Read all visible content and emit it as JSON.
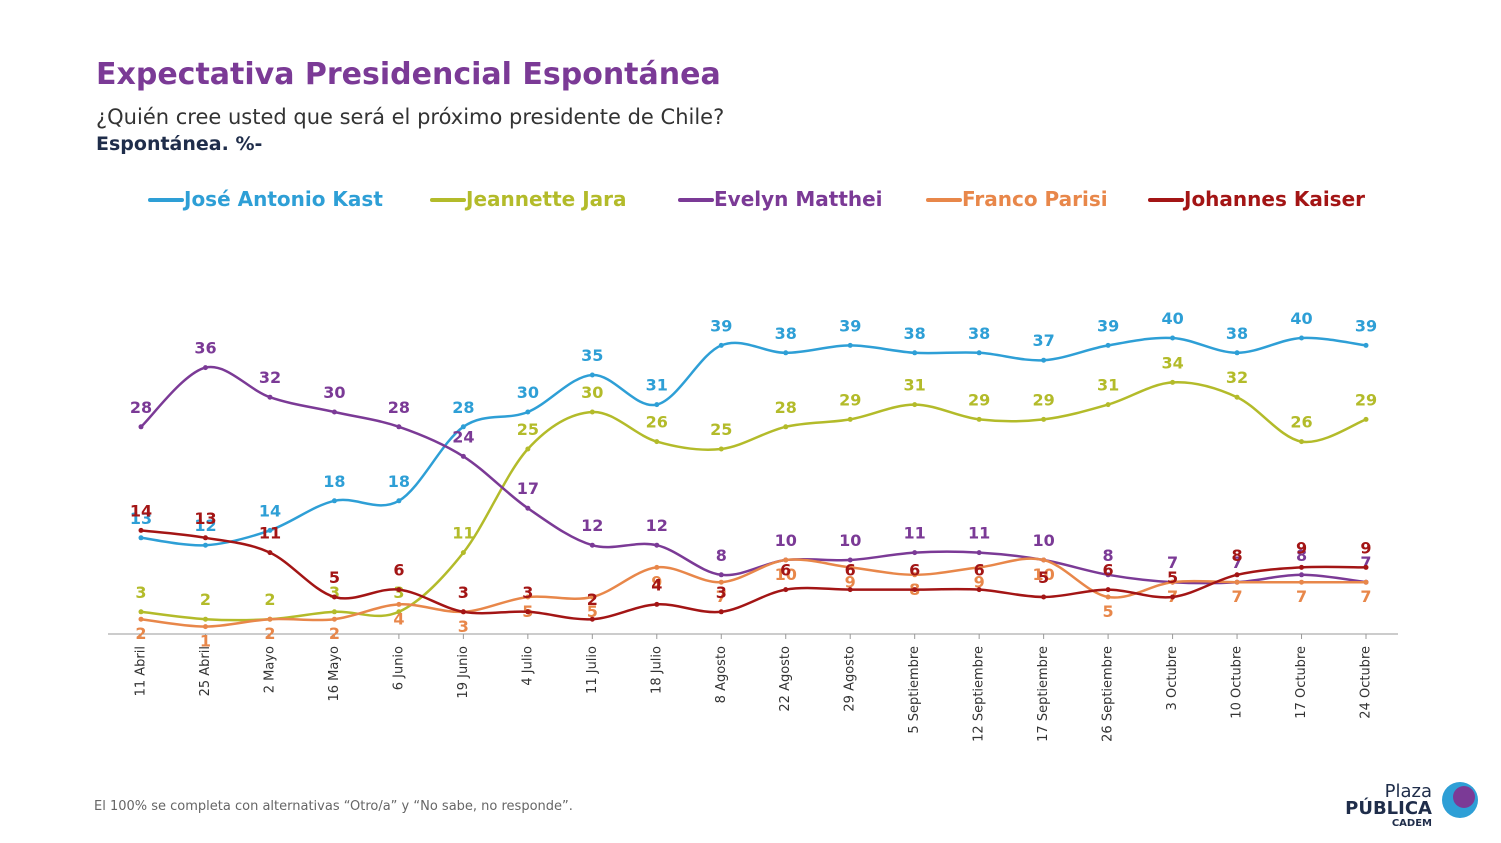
{
  "chart_data": {
    "type": "line",
    "title": "Expectativa Presidencial Espontánea",
    "subtitle": "¿Quién cree usted que será el próximo presidente de Chile?",
    "subtitle2": "Espontánea. %-",
    "note": "El 100% se completa con alternativas “Otro/a” y “No sabe, no responde”.",
    "logo": [
      "Plaza",
      "PÚBLICA",
      "CADEM"
    ],
    "categories": [
      "11 Abril",
      "25 Abril",
      "2 Mayo",
      "16 Mayo",
      "6 Junio",
      "19 Junio",
      "4 Julio",
      "11 Julio",
      "18 Julio",
      "8 Agosto",
      "22 Agosto",
      "29 Agosto",
      "5 Septiembre",
      "12 Septiembre",
      "17 Septiembre",
      "26 Septiembre",
      "3 Octubre",
      "10 Octubre",
      "17 Octubre",
      "24 Octubre"
    ],
    "series": [
      {
        "name": "José Antonio Kast",
        "color": "#2e9fd6",
        "values": [
          13,
          12,
          14,
          18,
          18,
          28,
          30,
          35,
          31,
          39,
          38,
          39,
          38,
          38,
          37,
          39,
          40,
          38,
          40,
          39
        ]
      },
      {
        "name": "Jeannette Jara",
        "color": "#b3bb2a",
        "values": [
          3,
          2,
          2,
          3,
          3,
          11,
          25,
          30,
          26,
          25,
          28,
          29,
          31,
          29,
          29,
          31,
          34,
          32,
          26,
          29
        ]
      },
      {
        "name": "Evelyn Matthei",
        "color": "#7b3a96",
        "values": [
          28,
          36,
          32,
          30,
          28,
          24,
          17,
          12,
          12,
          8,
          10,
          10,
          11,
          11,
          10,
          8,
          7,
          7,
          8,
          7
        ]
      },
      {
        "name": "Franco Parisi",
        "color": "#e8874a",
        "values": [
          2,
          1,
          2,
          2,
          4,
          3,
          5,
          5,
          9,
          7,
          10,
          9,
          8,
          9,
          10,
          5,
          7,
          7,
          7,
          7
        ]
      },
      {
        "name": "Johannes Kaiser",
        "color": "#a31515",
        "values": [
          14,
          13,
          11,
          5,
          6,
          3,
          3,
          2,
          4,
          3,
          6,
          6,
          6,
          6,
          5,
          6,
          5,
          8,
          9,
          9
        ]
      }
    ]
  }
}
